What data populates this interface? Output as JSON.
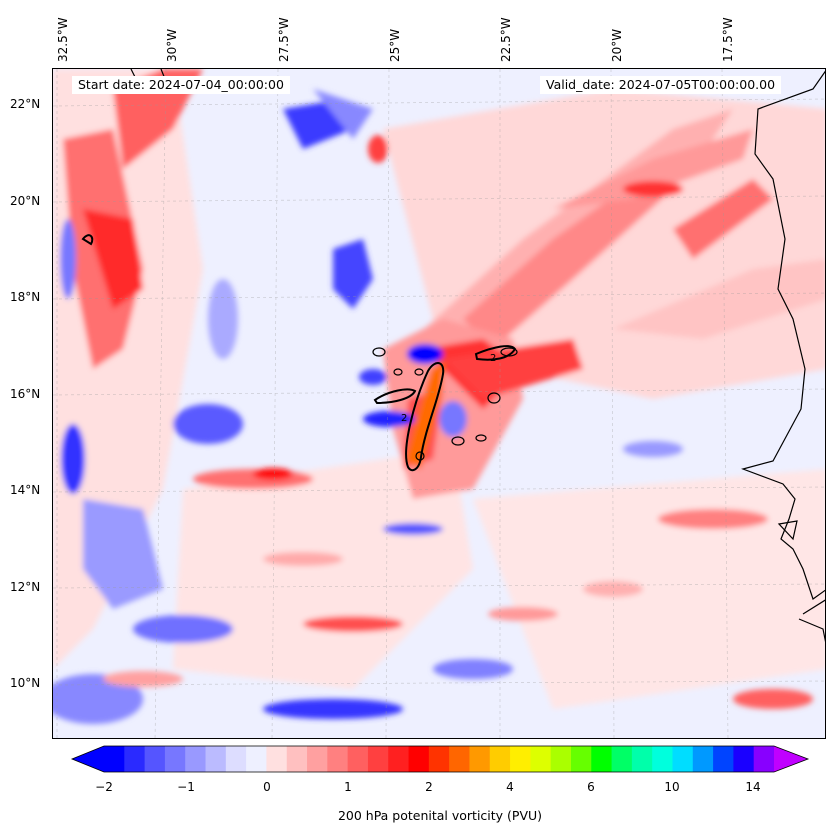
{
  "header": {
    "start_date": "Start date: 2024-07-04_00:00:00",
    "valid_date": "Valid_date: 2024-07-05T00:00:00.00"
  },
  "lon_labels": [
    "32.5°W",
    "30°W",
    "27.5°W",
    "25°W",
    "22.5°W",
    "20°W",
    "17.5°W"
  ],
  "lat_labels": [
    "22°N",
    "20°N",
    "18°N",
    "16°N",
    "14°N",
    "12°N",
    "10°N"
  ],
  "contour_label": "2",
  "colorbar": {
    "label": "200 hPa potenital vorticity (PVU)",
    "ticks": [
      "−2",
      "−1",
      "0",
      "1",
      "2",
      "4",
      "6",
      "10",
      "14"
    ],
    "colors": [
      "#0000ff",
      "#2a2aff",
      "#5555ff",
      "#7777ff",
      "#9999ff",
      "#bbbbff",
      "#ddddff",
      "#eef0ff",
      "#ffe0e0",
      "#ffc0c0",
      "#ffa0a0",
      "#ff8080",
      "#ff6060",
      "#ff4040",
      "#ff2020",
      "#ff0000",
      "#ff3300",
      "#ff6600",
      "#ff9900",
      "#ffcc00",
      "#ffee00",
      "#ddff00",
      "#aaff00",
      "#66ff00",
      "#00ff00",
      "#00ff66",
      "#00ffaa",
      "#00ffdd",
      "#00ddff",
      "#0099ff",
      "#0044ff",
      "#1a00ff",
      "#8800ff"
    ],
    "extend_low_color": "#0000ff",
    "extend_high_color": "#c000ff"
  }
}
